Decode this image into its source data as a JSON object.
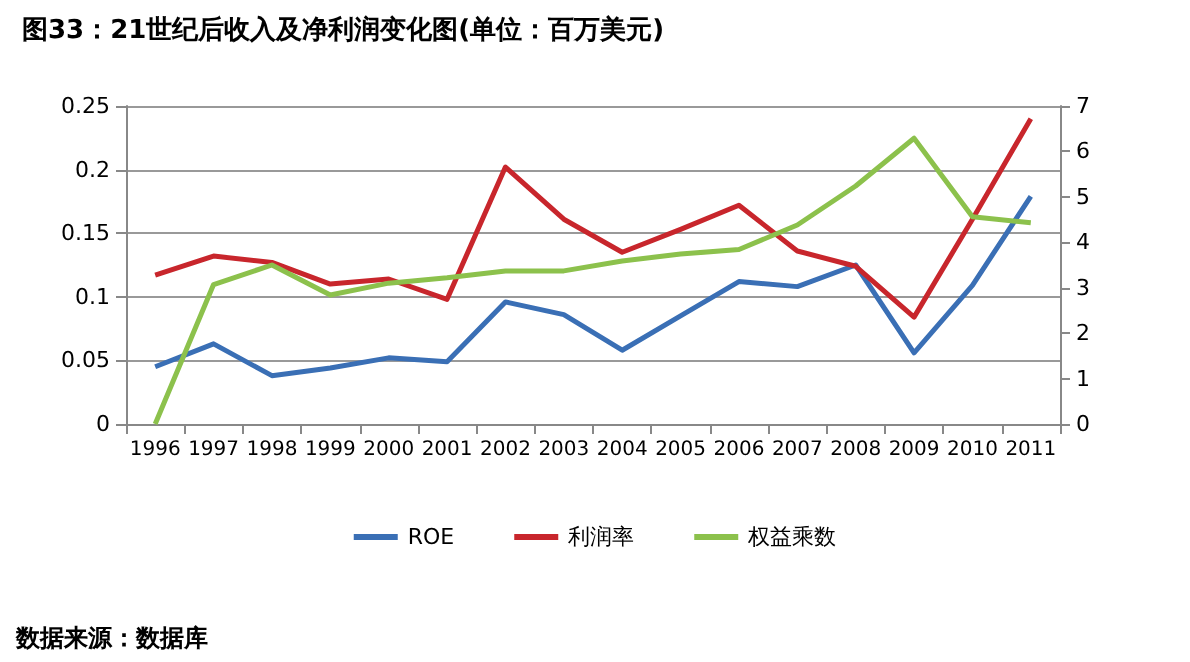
{
  "chart_data": {
    "type": "line",
    "title": "图33：21世纪后收入及净利润变化图(单位：百万美元)",
    "annotations": [
      "数据来源：数据库"
    ],
    "categories": [
      "1996",
      "1997",
      "1998",
      "1999",
      "2000",
      "2001",
      "2002",
      "2003",
      "2004",
      "2005",
      "2006",
      "2007",
      "2008",
      "2009",
      "2010",
      "2011"
    ],
    "series": [
      {
        "name": "ROE",
        "color": "#3a6fb5",
        "values": [
          0.045,
          0.063,
          0.038,
          0.044,
          0.052,
          0.049,
          0.096,
          0.086,
          0.058,
          0.085,
          0.112,
          0.108,
          0.125,
          0.056,
          0.109,
          0.179
        ]
      },
      {
        "name": "利润率",
        "color": "#c8262c",
        "values": [
          0.117,
          0.132,
          0.127,
          0.11,
          0.114,
          0.098,
          0.202,
          0.161,
          0.135,
          0.153,
          0.172,
          0.136,
          0.124,
          0.084,
          0.161,
          0.24
        ]
      },
      {
        "name": "权益乘数",
        "color": "#8cc14c",
        "axis": "y2",
        "values": [
          0,
          3.07,
          3.5,
          2.84,
          3.1,
          3.22,
          3.37,
          3.37,
          3.59,
          3.74,
          3.84,
          4.38,
          5.24,
          6.29,
          4.56,
          4.43
        ]
      }
    ],
    "ylim": [
      0,
      0.25
    ],
    "yticks": [
      0,
      0.05,
      0.1,
      0.15,
      0.2,
      0.25
    ],
    "y2lim": [
      0,
      7
    ],
    "y2ticks": [
      0,
      1,
      2,
      3,
      4,
      5,
      6,
      7
    ],
    "grid": "y",
    "legend": "bottom",
    "marker": "none",
    "line_style": "solid"
  }
}
